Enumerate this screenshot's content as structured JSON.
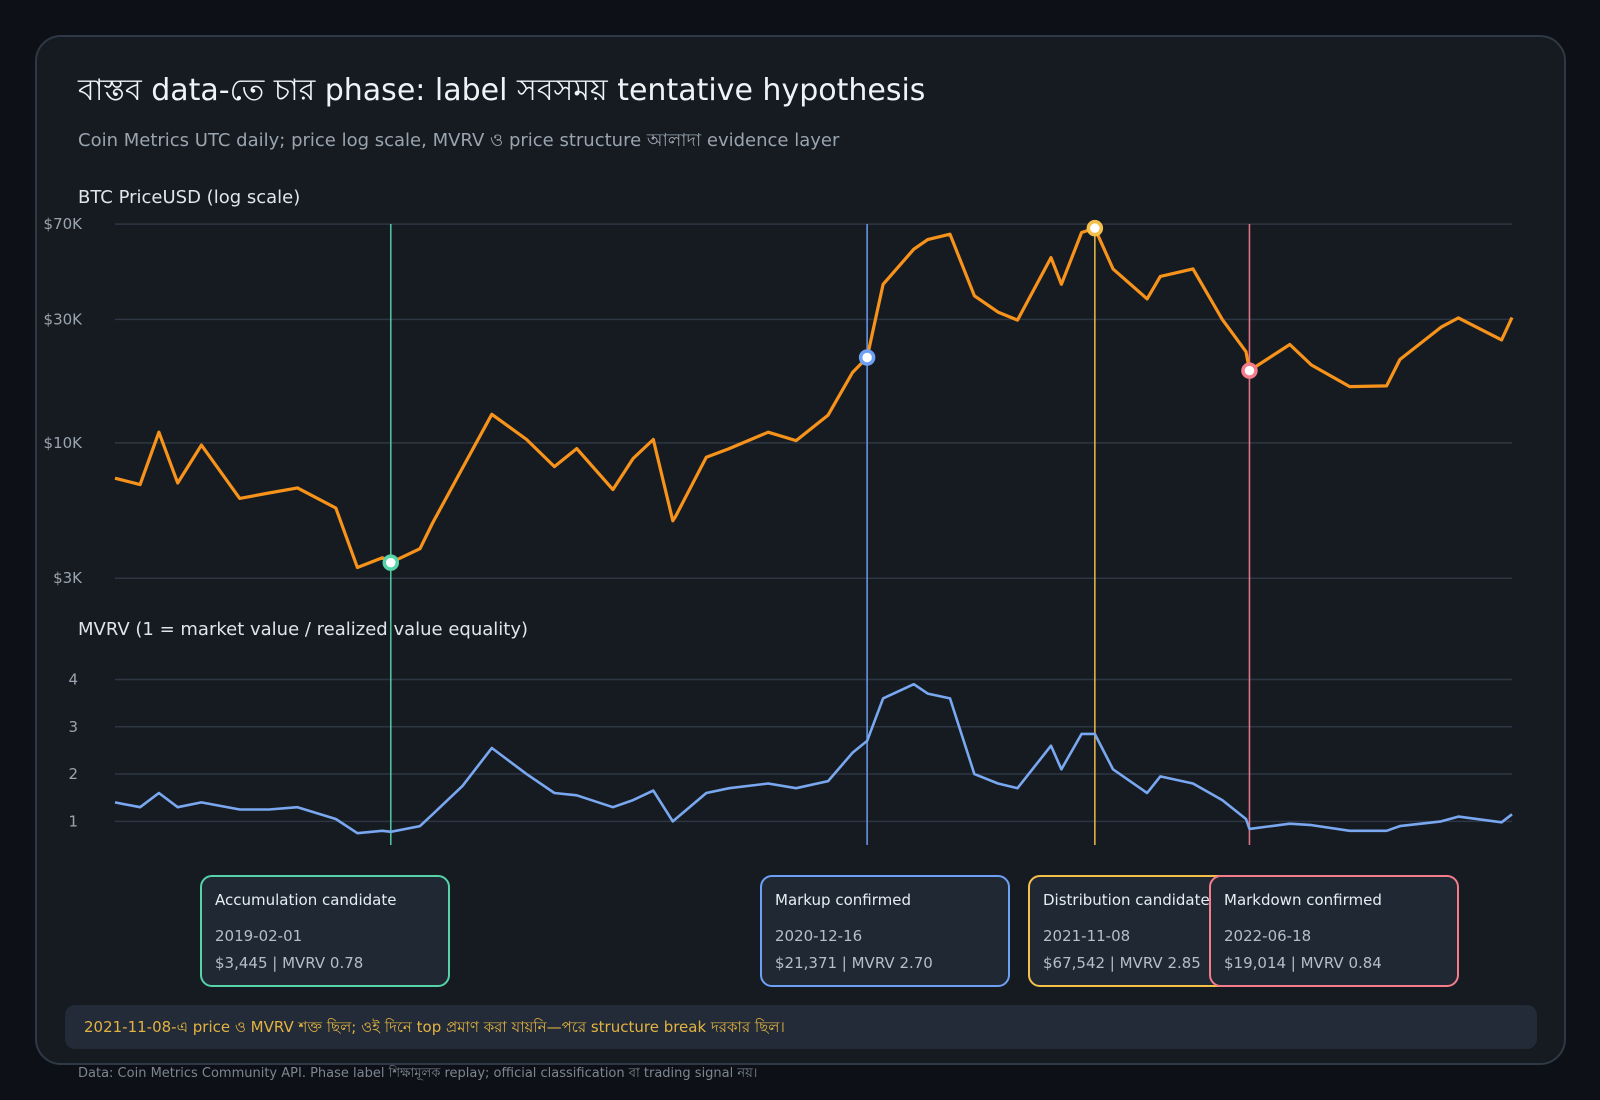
{
  "header": {
    "title": "বাস্তব data-তে চার phase: label সবসময় tentative hypothesis",
    "subtitle": "Coin Metrics UTC daily; price log scale, MVRV ও price structure আলাদা evidence layer"
  },
  "colors": {
    "background": "#0d1117",
    "card": "#161b22",
    "price_line": "#f7931a",
    "mvrv_line": "#79a8f0",
    "grid": "#2d3642",
    "accumulation": "#56d3a8",
    "markup": "#6ea0f5",
    "distribution": "#f5c04a",
    "markdown": "#f47c8b",
    "note_text": "#e3b341"
  },
  "chart_data": [
    {
      "type": "line",
      "title": "BTC PriceUSD (log scale)",
      "ylabel": "",
      "yscale": "log",
      "ylim": [
        2900,
        72000
      ],
      "y_ticks": [
        3000,
        10000,
        30000,
        70000
      ],
      "y_tick_labels": [
        "$3K",
        "$10K",
        "$30K",
        "$70K"
      ],
      "x_range": [
        "2018-01-01",
        "2023-06-30"
      ],
      "grid": true,
      "series": [
        {
          "x": [
            "2018-01-01",
            "2018-02-06",
            "2018-03-05",
            "2018-04-01",
            "2018-05-05",
            "2018-06-29",
            "2018-08-10",
            "2018-09-20",
            "2018-11-14",
            "2018-12-15",
            "2019-01-20",
            "2019-02-01",
            "2019-03-15",
            "2019-04-02",
            "2019-05-15",
            "2019-06-26",
            "2019-08-15",
            "2019-09-24",
            "2019-10-26",
            "2019-12-17",
            "2020-01-15",
            "2020-02-13",
            "2020-03-12",
            "2020-03-16",
            "2020-04-29",
            "2020-06-01",
            "2020-07-27",
            "2020-09-05",
            "2020-10-21",
            "2020-11-25",
            "2020-12-16",
            "2021-01-08",
            "2021-02-21",
            "2021-03-13",
            "2021-04-14",
            "2021-05-19",
            "2021-06-22",
            "2021-07-20",
            "2021-09-06",
            "2021-09-21",
            "2021-10-20",
            "2021-11-08",
            "2021-12-04",
            "2022-01-22",
            "2022-02-10",
            "2022-03-29",
            "2022-05-10",
            "2022-06-13",
            "2022-06-18",
            "2022-08-15",
            "2022-09-15",
            "2022-11-09",
            "2023-01-01",
            "2023-01-20",
            "2023-03-20",
            "2023-04-14",
            "2023-06-15",
            "2023-06-30"
          ],
          "y": [
            7300,
            6900,
            11000,
            7000,
            9800,
            6100,
            6400,
            6700,
            5600,
            3300,
            3600,
            3445,
            3900,
            4900,
            8000,
            12900,
            10300,
            8100,
            9500,
            6600,
            8700,
            10300,
            5000,
            5200,
            8800,
            9500,
            11000,
            10200,
            12800,
            18700,
            21371,
            41000,
            56000,
            61000,
            64000,
            37000,
            32000,
            29800,
            52000,
            41000,
            65000,
            67542,
            47000,
            36000,
            44000,
            47000,
            30000,
            22500,
            19014,
            24000,
            20000,
            16500,
            16600,
            21000,
            28000,
            30400,
            25000,
            30500
          ]
        }
      ]
    },
    {
      "type": "line",
      "title": "MVRV (1 = market value / realized value equality)",
      "ylabel": "",
      "ylim": [
        0.5,
        4.2
      ],
      "y_ticks": [
        1,
        2,
        3,
        4
      ],
      "y_tick_labels": [
        "1",
        "2",
        "3",
        "4"
      ],
      "x_range": [
        "2018-01-01",
        "2023-06-30"
      ],
      "grid": true,
      "series": [
        {
          "x": [
            "2018-01-01",
            "2018-02-06",
            "2018-03-05",
            "2018-04-01",
            "2018-05-05",
            "2018-06-29",
            "2018-08-10",
            "2018-09-20",
            "2018-11-14",
            "2018-12-15",
            "2019-01-20",
            "2019-02-01",
            "2019-03-15",
            "2019-04-02",
            "2019-05-15",
            "2019-06-26",
            "2019-08-15",
            "2019-09-24",
            "2019-10-26",
            "2019-12-17",
            "2020-01-15",
            "2020-02-13",
            "2020-03-12",
            "2020-03-16",
            "2020-04-29",
            "2020-06-01",
            "2020-07-27",
            "2020-09-05",
            "2020-10-21",
            "2020-11-25",
            "2020-12-16",
            "2021-01-08",
            "2021-02-21",
            "2021-03-13",
            "2021-04-14",
            "2021-05-19",
            "2021-06-22",
            "2021-07-20",
            "2021-09-06",
            "2021-09-21",
            "2021-10-20",
            "2021-11-08",
            "2021-12-04",
            "2022-01-22",
            "2022-02-10",
            "2022-03-29",
            "2022-05-10",
            "2022-06-13",
            "2022-06-18",
            "2022-08-15",
            "2022-09-15",
            "2022-11-09",
            "2023-01-01",
            "2023-01-20",
            "2023-03-20",
            "2023-04-14",
            "2023-06-15",
            "2023-06-30"
          ],
          "y": [
            1.4,
            1.3,
            1.6,
            1.3,
            1.4,
            1.25,
            1.25,
            1.3,
            1.05,
            0.75,
            0.8,
            0.78,
            0.9,
            1.15,
            1.75,
            2.55,
            2.0,
            1.6,
            1.55,
            1.3,
            1.45,
            1.65,
            1.0,
            1.05,
            1.6,
            1.7,
            1.8,
            1.7,
            1.85,
            2.45,
            2.7,
            3.6,
            3.9,
            3.7,
            3.6,
            2.0,
            1.8,
            1.7,
            2.6,
            2.1,
            2.85,
            2.85,
            2.1,
            1.6,
            1.95,
            1.8,
            1.45,
            1.05,
            0.84,
            0.95,
            0.92,
            0.8,
            0.8,
            0.9,
            1.0,
            1.1,
            0.98,
            1.15
          ]
        }
      ]
    }
  ],
  "phases": [
    {
      "name": "Accumulation candidate",
      "date": "2019-02-01",
      "metrics": "$3,445 | MVRV 0.78",
      "price": 3445,
      "mvrv": 0.78,
      "color_key": "accumulation"
    },
    {
      "name": "Markup confirmed",
      "date": "2020-12-16",
      "metrics": "$21,371 | MVRV 2.70",
      "price": 21371,
      "mvrv": 2.7,
      "color_key": "markup"
    },
    {
      "name": "Distribution candidate",
      "date": "2021-11-08",
      "metrics": "$67,542 | MVRV 2.85",
      "price": 67542,
      "mvrv": 2.85,
      "color_key": "distribution"
    },
    {
      "name": "Markdown confirmed",
      "date": "2022-06-18",
      "metrics": "$19,014 | MVRV 0.84",
      "price": 19014,
      "mvrv": 0.84,
      "color_key": "markdown"
    }
  ],
  "note": "2021-11-08-এ price ও MVRV শক্ত ছিল; ওই দিনে top প্রমাণ করা যায়নি—পরে structure break দরকার ছিল।",
  "footer": "Data: Coin Metrics Community API. Phase label শিক্ষামূলক replay; official classification বা trading signal নয়।"
}
